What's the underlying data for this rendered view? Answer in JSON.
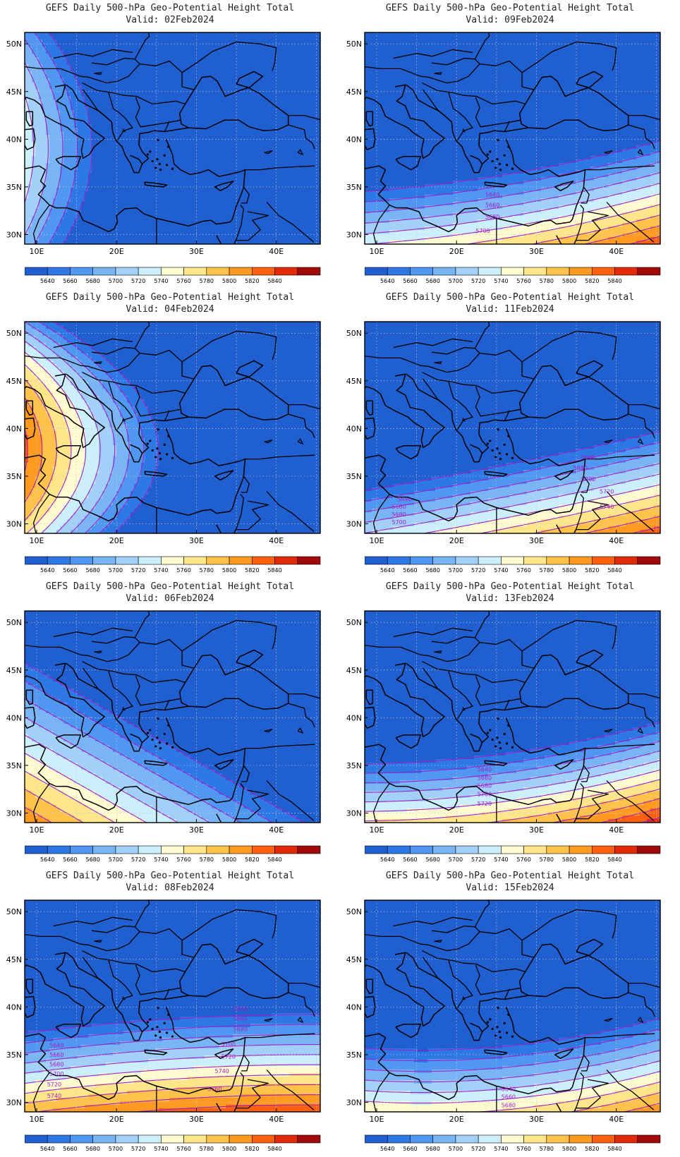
{
  "figure": {
    "panel_title": "GEFS Daily 500-hPa Geo-Potential Height Total",
    "valid_prefix": "Valid:",
    "x_ticks": [
      "10E",
      "20E",
      "30E",
      "40E"
    ],
    "y_ticks": [
      "50N",
      "45N",
      "40N",
      "35N",
      "30N"
    ],
    "colorbar_labels": [
      "5640",
      "5660",
      "5680",
      "5700",
      "5720",
      "5740",
      "5760",
      "5780",
      "5800",
      "5820",
      "5840"
    ],
    "colorbar_colors": [
      "#1f5fd0",
      "#2e78e6",
      "#4f97f0",
      "#79b4f5",
      "#a3d0f8",
      "#cceffc",
      "#fffbd0",
      "#ffe68a",
      "#ffc24a",
      "#ff9a20",
      "#ff6010",
      "#e02a0a",
      "#a00a0a"
    ],
    "contour_color": "#a020c8",
    "border_color": "#000000"
  },
  "panels": [
    {
      "id": "p1",
      "valid": "02Feb2024",
      "contour_labels": []
    },
    {
      "id": "p2",
      "valid": "09Feb2024",
      "contour_labels": [
        "5640",
        "5660",
        "5680",
        "5700"
      ]
    },
    {
      "id": "p3",
      "valid": "04Feb2024",
      "contour_labels": []
    },
    {
      "id": "p4",
      "valid": "11Feb2024",
      "contour_labels": [
        "5660",
        "5680",
        "5700",
        "5720",
        "5740",
        "5640",
        "5660",
        "5680",
        "5700"
      ]
    },
    {
      "id": "p5",
      "valid": "06Feb2024",
      "contour_labels": []
    },
    {
      "id": "p6",
      "valid": "13Feb2024",
      "contour_labels": [
        "5640",
        "5660",
        "5680",
        "5700",
        "5720"
      ]
    },
    {
      "id": "p7",
      "valid": "08Feb2024",
      "contour_labels": [
        "5640",
        "5660",
        "5680",
        "5700",
        "5720",
        "5740",
        "5760",
        "5640",
        "5660",
        "5680",
        "5700",
        "5720",
        "5740"
      ]
    },
    {
      "id": "p8",
      "valid": "15Feb2024",
      "contour_labels": [
        "5640",
        "5660",
        "5680"
      ]
    }
  ]
}
